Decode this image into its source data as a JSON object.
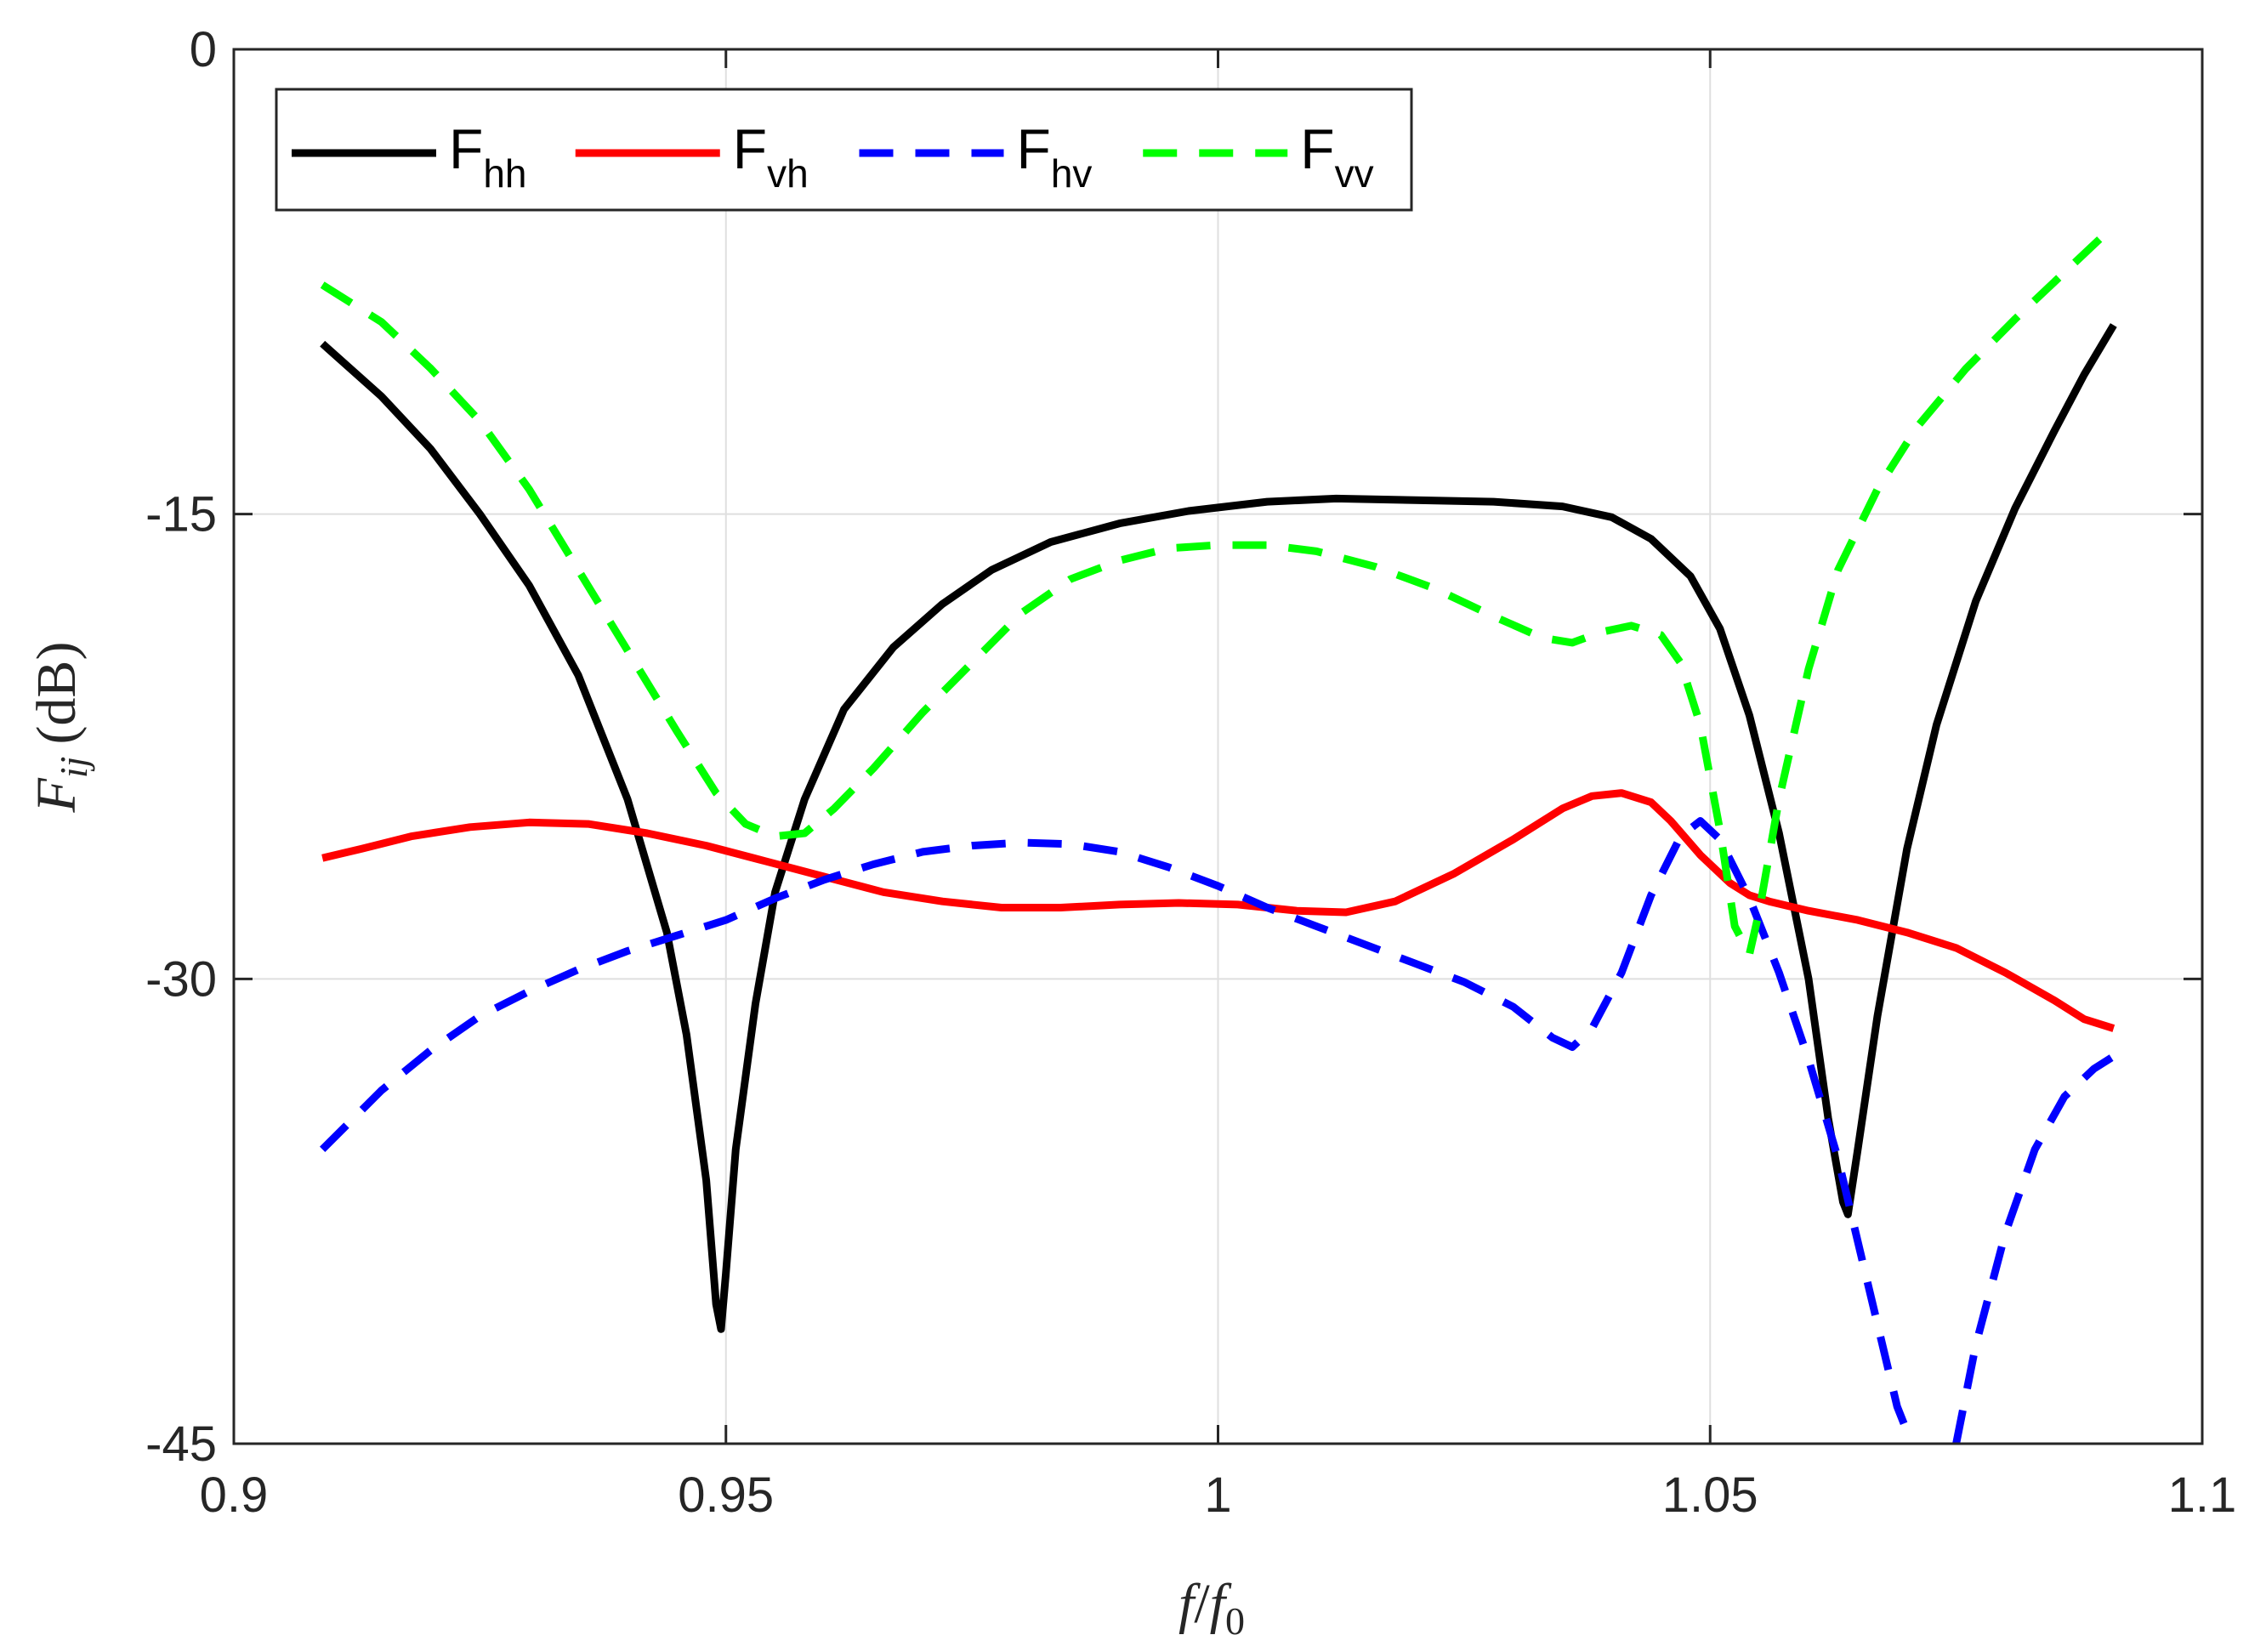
{
  "chart_data": {
    "type": "line",
    "xlabel_main": "f",
    "xlabel_sep": "/",
    "xlabel_f": "f",
    "xlabel_sub": "0",
    "ylabel_main": "F",
    "ylabel_sub": "ij",
    "ylabel_unit": "(dB)",
    "xlim": [
      0.9,
      1.1
    ],
    "ylim": [
      -45,
      0
    ],
    "grid": true,
    "legend_placement": "top-left",
    "x_ticks": [
      0.9,
      0.95,
      1.0,
      1.05,
      1.1
    ],
    "x_tick_labels": [
      "0.9",
      "0.95",
      "1",
      "1.05",
      "1.1"
    ],
    "y_ticks": [
      0,
      -15,
      -30,
      -45
    ],
    "y_tick_labels": [
      "0",
      "-15",
      "-30",
      "-45"
    ],
    "series": [
      {
        "name": "F",
        "sub": "hh",
        "color": "#000000",
        "dash": "solid",
        "points": [
          [
            0.909,
            -9.5
          ],
          [
            0.915,
            -11.2
          ],
          [
            0.92,
            -12.9
          ],
          [
            0.925,
            -15.0
          ],
          [
            0.93,
            -17.3
          ],
          [
            0.935,
            -20.2
          ],
          [
            0.94,
            -24.2
          ],
          [
            0.944,
            -28.5
          ],
          [
            0.946,
            -31.8
          ],
          [
            0.948,
            -36.5
          ],
          [
            0.949,
            -40.5
          ],
          [
            0.9495,
            -41.3
          ],
          [
            0.95,
            -39.5
          ],
          [
            0.951,
            -35.5
          ],
          [
            0.953,
            -30.8
          ],
          [
            0.955,
            -27.2
          ],
          [
            0.958,
            -24.2
          ],
          [
            0.962,
            -21.3
          ],
          [
            0.967,
            -19.3
          ],
          [
            0.972,
            -17.9
          ],
          [
            0.977,
            -16.8
          ],
          [
            0.983,
            -15.9
          ],
          [
            0.99,
            -15.3
          ],
          [
            0.997,
            -14.9
          ],
          [
            1.005,
            -14.6
          ],
          [
            1.012,
            -14.5
          ],
          [
            1.02,
            -14.55
          ],
          [
            1.028,
            -14.6
          ],
          [
            1.035,
            -14.75
          ],
          [
            1.04,
            -15.1
          ],
          [
            1.044,
            -15.8
          ],
          [
            1.048,
            -17.0
          ],
          [
            1.051,
            -18.7
          ],
          [
            1.054,
            -21.5
          ],
          [
            1.057,
            -25.3
          ],
          [
            1.06,
            -30.0
          ],
          [
            1.062,
            -34.5
          ],
          [
            1.0635,
            -37.2
          ],
          [
            1.064,
            -37.6
          ],
          [
            1.065,
            -35.5
          ],
          [
            1.067,
            -31.2
          ],
          [
            1.07,
            -25.8
          ],
          [
            1.073,
            -21.8
          ],
          [
            1.077,
            -17.8
          ],
          [
            1.081,
            -14.8
          ],
          [
            1.085,
            -12.3
          ],
          [
            1.088,
            -10.5
          ],
          [
            1.091,
            -8.9
          ]
        ]
      },
      {
        "name": "F",
        "sub": "vh",
        "color": "#ff0000",
        "dash": "solid",
        "points": [
          [
            0.909,
            -26.1
          ],
          [
            0.913,
            -25.8
          ],
          [
            0.918,
            -25.4
          ],
          [
            0.924,
            -25.1
          ],
          [
            0.93,
            -24.95
          ],
          [
            0.936,
            -25.0
          ],
          [
            0.942,
            -25.3
          ],
          [
            0.948,
            -25.7
          ],
          [
            0.954,
            -26.2
          ],
          [
            0.96,
            -26.7
          ],
          [
            0.966,
            -27.2
          ],
          [
            0.972,
            -27.5
          ],
          [
            0.978,
            -27.7
          ],
          [
            0.984,
            -27.7
          ],
          [
            0.99,
            -27.6
          ],
          [
            0.996,
            -27.55
          ],
          [
            1.002,
            -27.6
          ],
          [
            1.008,
            -27.8
          ],
          [
            1.013,
            -27.85
          ],
          [
            1.018,
            -27.5
          ],
          [
            1.024,
            -26.6
          ],
          [
            1.03,
            -25.5
          ],
          [
            1.035,
            -24.5
          ],
          [
            1.038,
            -24.1
          ],
          [
            1.041,
            -24.0
          ],
          [
            1.044,
            -24.3
          ],
          [
            1.046,
            -24.9
          ],
          [
            1.049,
            -26.0
          ],
          [
            1.052,
            -26.9
          ],
          [
            1.054,
            -27.3
          ],
          [
            1.056,
            -27.5
          ],
          [
            1.06,
            -27.8
          ],
          [
            1.065,
            -28.1
          ],
          [
            1.07,
            -28.5
          ],
          [
            1.075,
            -29.0
          ],
          [
            1.08,
            -29.8
          ],
          [
            1.085,
            -30.7
          ],
          [
            1.088,
            -31.3
          ],
          [
            1.091,
            -31.6
          ]
        ]
      },
      {
        "name": "F",
        "sub": "hv",
        "color": "#0000ff",
        "dash": "dashed",
        "points": [
          [
            0.909,
            -35.5
          ],
          [
            0.915,
            -33.6
          ],
          [
            0.92,
            -32.3
          ],
          [
            0.925,
            -31.2
          ],
          [
            0.93,
            -30.4
          ],
          [
            0.935,
            -29.7
          ],
          [
            0.94,
            -29.1
          ],
          [
            0.945,
            -28.6
          ],
          [
            0.95,
            -28.1
          ],
          [
            0.955,
            -27.4
          ],
          [
            0.96,
            -26.8
          ],
          [
            0.965,
            -26.3
          ],
          [
            0.97,
            -25.9
          ],
          [
            0.975,
            -25.7
          ],
          [
            0.98,
            -25.6
          ],
          [
            0.985,
            -25.65
          ],
          [
            0.99,
            -25.9
          ],
          [
            0.995,
            -26.4
          ],
          [
            1.0,
            -27.0
          ],
          [
            1.005,
            -27.7
          ],
          [
            1.01,
            -28.3
          ],
          [
            1.015,
            -28.9
          ],
          [
            1.02,
            -29.5
          ],
          [
            1.025,
            -30.1
          ],
          [
            1.03,
            -30.9
          ],
          [
            1.034,
            -31.9
          ],
          [
            1.036,
            -32.2
          ],
          [
            1.038,
            -31.6
          ],
          [
            1.041,
            -29.8
          ],
          [
            1.044,
            -27.3
          ],
          [
            1.047,
            -25.4
          ],
          [
            1.049,
            -24.9
          ],
          [
            1.051,
            -25.5
          ],
          [
            1.054,
            -27.4
          ],
          [
            1.057,
            -29.8
          ],
          [
            1.06,
            -32.6
          ],
          [
            1.063,
            -35.8
          ],
          [
            1.066,
            -39.8
          ],
          [
            1.069,
            -43.8
          ],
          [
            1.0705,
            -45.0
          ]
        ]
      },
      {
        "name": "",
        "sub": "",
        "color": "#0000ff",
        "dash": "dashed",
        "points": [
          [
            1.075,
            -45.0
          ],
          [
            1.077,
            -41.8
          ],
          [
            1.08,
            -38.2
          ],
          [
            1.083,
            -35.5
          ],
          [
            1.086,
            -33.8
          ],
          [
            1.089,
            -32.9
          ],
          [
            1.091,
            -32.5
          ]
        ]
      },
      {
        "name": "F",
        "sub": "vv",
        "color": "#00ff00",
        "dash": "dashed",
        "points": [
          [
            0.909,
            -7.6
          ],
          [
            0.915,
            -8.8
          ],
          [
            0.92,
            -10.3
          ],
          [
            0.925,
            -12.0
          ],
          [
            0.93,
            -14.2
          ],
          [
            0.935,
            -16.8
          ],
          [
            0.94,
            -19.4
          ],
          [
            0.945,
            -22.0
          ],
          [
            0.949,
            -24.0
          ],
          [
            0.952,
            -25.0
          ],
          [
            0.955,
            -25.4
          ],
          [
            0.958,
            -25.3
          ],
          [
            0.961,
            -24.5
          ],
          [
            0.965,
            -23.2
          ],
          [
            0.97,
            -21.4
          ],
          [
            0.975,
            -19.8
          ],
          [
            0.98,
            -18.2
          ],
          [
            0.985,
            -17.1
          ],
          [
            0.99,
            -16.5
          ],
          [
            0.995,
            -16.1
          ],
          [
            1.0,
            -16.0
          ],
          [
            1.005,
            -16.0
          ],
          [
            1.01,
            -16.2
          ],
          [
            1.016,
            -16.7
          ],
          [
            1.022,
            -17.4
          ],
          [
            1.028,
            -18.3
          ],
          [
            1.033,
            -19.0
          ],
          [
            1.036,
            -19.15
          ],
          [
            1.039,
            -18.8
          ],
          [
            1.042,
            -18.6
          ],
          [
            1.045,
            -18.9
          ],
          [
            1.047,
            -19.8
          ],
          [
            1.049,
            -21.8
          ],
          [
            1.051,
            -25.2
          ],
          [
            1.0525,
            -28.3
          ],
          [
            1.054,
            -29.2
          ],
          [
            1.055,
            -27.8
          ],
          [
            1.057,
            -24.2
          ],
          [
            1.06,
            -20.0
          ],
          [
            1.063,
            -16.8
          ],
          [
            1.067,
            -14.2
          ],
          [
            1.071,
            -12.2
          ],
          [
            1.076,
            -10.3
          ],
          [
            1.081,
            -8.7
          ],
          [
            1.086,
            -7.2
          ],
          [
            1.091,
            -5.7
          ]
        ]
      }
    ]
  }
}
